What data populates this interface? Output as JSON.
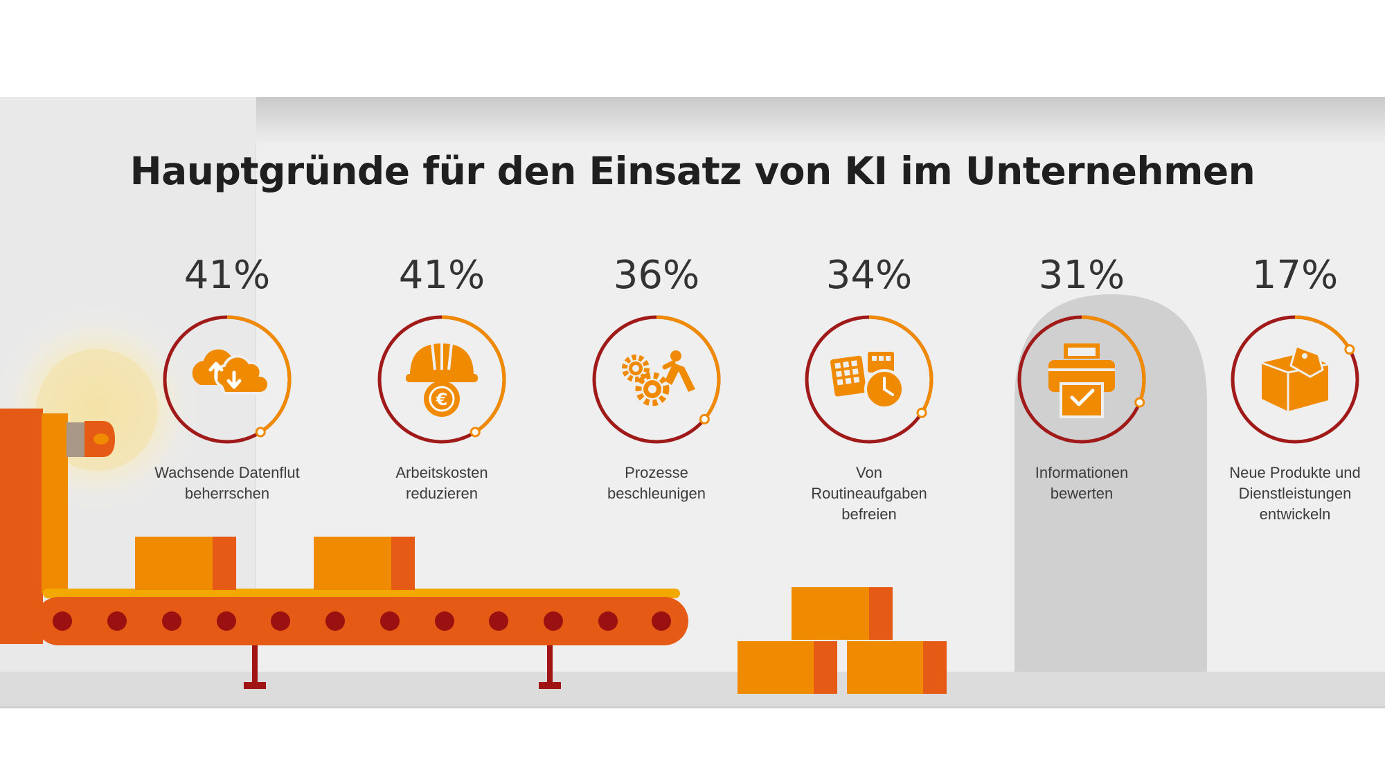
{
  "title": "Hauptgründe für den Einsatz von KI im Unternehmen",
  "colors": {
    "orange": "#f08a00",
    "dark_orange": "#e55a14",
    "red_orange": "#dd4a1a",
    "dark_red": "#9b1010",
    "ring_red": "#a01a1a",
    "wall": "#efefef",
    "arch": "#d0d0d0"
  },
  "chart_data": {
    "type": "radial-progress",
    "title": "Hauptgründe für den Einsatz von KI im Unternehmen",
    "unit": "%",
    "categories": [
      "Wachsende Datenflut beherrschen",
      "Arbeitskosten reduzieren",
      "Prozesse beschleunigen",
      "Von Routineaufgaben befreien",
      "Informationen bewerten",
      "Neue Produkte und Dienstleistungen entwickeln"
    ],
    "values": [
      41,
      41,
      36,
      34,
      31,
      17
    ],
    "ylim": [
      0,
      100
    ],
    "items": [
      {
        "value": 41,
        "pct_label": "41%",
        "label_lines": [
          "Wachsende Datenflut",
          "beherrschen"
        ],
        "icon": "cloud-sync-icon"
      },
      {
        "value": 41,
        "pct_label": "41%",
        "label_lines": [
          "Arbeitskosten",
          "reduzieren"
        ],
        "icon": "hardhat-euro-icon"
      },
      {
        "value": 36,
        "pct_label": "36%",
        "label_lines": [
          "Prozesse",
          "beschleunigen"
        ],
        "icon": "gears-worker-icon"
      },
      {
        "value": 34,
        "pct_label": "34%",
        "label_lines": [
          "Von",
          "Routineaufgaben",
          "befreien"
        ],
        "icon": "calendar-clock-icon"
      },
      {
        "value": 31,
        "pct_label": "31%",
        "label_lines": [
          "Informationen",
          "bewerten"
        ],
        "icon": "printer-check-icon"
      },
      {
        "value": 17,
        "pct_label": "17%",
        "label_lines": [
          "Neue Produkte und",
          "Dienstleistungen",
          "entwickeln"
        ],
        "icon": "box-tag-icon"
      }
    ]
  }
}
